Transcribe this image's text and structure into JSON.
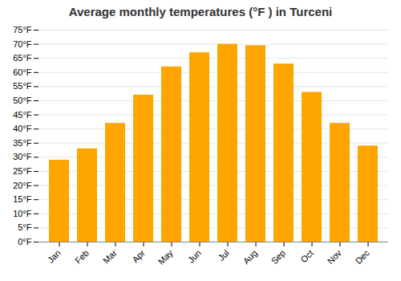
{
  "chart_data": {
    "type": "bar",
    "title": "Average monthly temperatures (°F ) in Turceni",
    "categories": [
      "Jan",
      "Feb",
      "Mar",
      "Apr",
      "May",
      "Jun",
      "Jul",
      "Aug",
      "Sep",
      "Oct",
      "Nov",
      "Dec"
    ],
    "values": [
      29,
      33,
      42,
      52,
      62,
      67,
      70,
      69.5,
      63,
      53,
      42,
      34
    ],
    "color": "#FFA500",
    "ylim": [
      0,
      75
    ],
    "yticks": [
      {
        "value": 0,
        "label": "0°F"
      },
      {
        "value": 5,
        "label": "5°F"
      },
      {
        "value": 10,
        "label": "10°F"
      },
      {
        "value": 15,
        "label": "15°F"
      },
      {
        "value": 20,
        "label": "20°F"
      },
      {
        "value": 25,
        "label": "25°F"
      },
      {
        "value": 30,
        "label": "30°F"
      },
      {
        "value": 35,
        "label": "35°F"
      },
      {
        "value": 40,
        "label": "40°F"
      },
      {
        "value": 45,
        "label": "45°F"
      },
      {
        "value": 50,
        "label": "50°F"
      },
      {
        "value": 55,
        "label": "55°F"
      },
      {
        "value": 60,
        "label": "60°F"
      },
      {
        "value": 65,
        "label": "65°F"
      },
      {
        "value": 70,
        "label": "70°F"
      },
      {
        "value": 75,
        "label": "75°F"
      }
    ],
    "grid": true
  }
}
